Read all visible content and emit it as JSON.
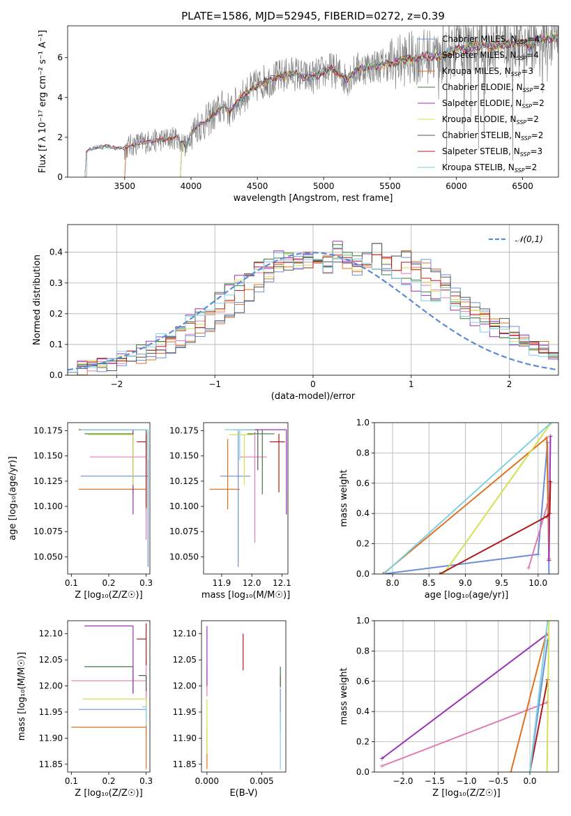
{
  "figure_title": "PLATE=1586, MJD=52945, FIBERID=0272, z=0.39",
  "series": [
    {
      "name": "Chabrier MILES, N$_{SSP}$=4",
      "label_main": "Chabrier MILES, N",
      "label_sub": "SSP",
      "label_tail": "=4",
      "color": "#6a8fd8"
    },
    {
      "name": "Salpeter MILES, N$_{SSP}$=4",
      "label_main": "Salpeter MILES, N",
      "label_sub": "SSP",
      "label_tail": "=4",
      "color": "#e07bb5"
    },
    {
      "name": "Kroupa MILES, N$_{SSP}$=3",
      "label_main": "Kroupa MILES, N",
      "label_sub": "SSP",
      "label_tail": "=3",
      "color": "#e07020"
    },
    {
      "name": "Chabrier ELODIE, N$_{SSP}$=2",
      "label_main": "Chabrier ELODIE, N",
      "label_sub": "SSP",
      "label_tail": "=2",
      "color": "#3a7d3a"
    },
    {
      "name": "Salpeter ELODIE, N$_{SSP}$=2",
      "label_main": "Salpeter ELODIE, N",
      "label_sub": "SSP",
      "label_tail": "=2",
      "color": "#9b30b8"
    },
    {
      "name": "Kroupa ELODIE, N$_{SSP}$=2",
      "label_main": "Kroupa ELODIE, N",
      "label_sub": "SSP",
      "label_tail": "=2",
      "color": "#d4e050"
    },
    {
      "name": "Chabrier STELIB, N$_{SSP}$=2",
      "label_main": "Chabrier STELIB, N",
      "label_sub": "SSP",
      "label_tail": "=2",
      "color": "#555555"
    },
    {
      "name": "Salpeter STELIB, N$_{SSP}$=3",
      "label_main": "Salpeter STELIB, N",
      "label_sub": "SSP",
      "label_tail": "=3",
      "color": "#b01818"
    },
    {
      "name": "Kroupa STELIB, N$_{SSP}$=2",
      "label_main": "Kroupa STELIB, N",
      "label_sub": "SSP",
      "label_tail": "=2",
      "color": "#7ed0e0"
    }
  ],
  "chart_data": [
    {
      "type": "line",
      "id": "spectrum",
      "xlabel": "wavelength [Angstrom, rest frame]",
      "ylabel": "Flux [f$_\\lambda$ 10$^{-17}$ erg cm$^{-2}$ s$^{-1}$ A$^{-1}$]",
      "ylabel_display": "Flux [f λ 10⁻¹⁷ erg cm⁻² s⁻¹ A⁻¹]",
      "xlim": [
        3070,
        6770
      ],
      "ylim": [
        0,
        7.6
      ],
      "xticks": [
        3500,
        4000,
        4500,
        5000,
        5500,
        6000,
        6500
      ],
      "yticks": [
        0,
        2,
        4,
        6
      ],
      "observed_color": "#808080",
      "model_anchor_x": [
        3200,
        3250,
        3300,
        3350,
        3400,
        3450,
        3500,
        3550,
        3600,
        3650,
        3700,
        3750,
        3800,
        3850,
        3900,
        3925,
        3935,
        3950,
        3968,
        3990,
        4050,
        4100,
        4150,
        4200,
        4250,
        4300,
        4350,
        4400,
        4450,
        4500,
        4550,
        4600,
        4650,
        4700,
        4750,
        4800,
        4850,
        4900,
        4950,
        5000,
        5050,
        5100,
        5150,
        5175,
        5200,
        5250,
        5300,
        5400,
        5500,
        5600,
        5700,
        5800,
        5890,
        5950,
        6000,
        6100,
        6200,
        6300,
        6400,
        6500,
        6560,
        6600,
        6700
      ],
      "model_anchor_y": [
        1.2,
        1.45,
        1.5,
        1.55,
        1.5,
        1.45,
        1.45,
        1.6,
        1.7,
        1.75,
        1.8,
        1.85,
        1.9,
        1.95,
        2.0,
        1.6,
        1.75,
        1.7,
        1.4,
        2.1,
        2.6,
        2.7,
        3.0,
        3.3,
        3.6,
        3.3,
        3.8,
        4.1,
        4.4,
        4.6,
        4.8,
        4.9,
        5.0,
        5.1,
        5.2,
        5.2,
        5.0,
        5.0,
        5.1,
        5.3,
        5.4,
        5.3,
        5.0,
        4.9,
        5.1,
        5.4,
        5.5,
        5.6,
        5.7,
        5.9,
        6.0,
        6.1,
        6.0,
        6.3,
        6.4,
        6.5,
        6.6,
        6.6,
        6.7,
        6.8,
        6.5,
        6.9,
        7.0
      ],
      "legend_position": "upper right"
    },
    {
      "type": "step",
      "id": "residual-histogram",
      "xlabel": "(data-model)/error",
      "ylabel": "Normed distribution",
      "xlim": [
        -2.5,
        2.5
      ],
      "ylim": [
        0,
        0.49
      ],
      "xticks": [
        -2,
        -1,
        0,
        1,
        2
      ],
      "yticks": [
        0.0,
        0.1,
        0.2,
        0.3,
        0.4
      ],
      "grid": true,
      "reference_curve": {
        "name": "𝒩(0,1)",
        "color": "#5b8bd6",
        "dash": "8,4"
      },
      "legend_position": "upper right",
      "bin_width": 0.1,
      "bin_start": -2.5,
      "histograms": [
        [
          0.02,
          0.02,
          0.03,
          0.03,
          0.03,
          0.04,
          0.04,
          0.05,
          0.06,
          0.07,
          0.09,
          0.1,
          0.12,
          0.14,
          0.15,
          0.17,
          0.19,
          0.22,
          0.26,
          0.29,
          0.32,
          0.34,
          0.36,
          0.38,
          0.39,
          0.38,
          0.35,
          0.38,
          0.36,
          0.34,
          0.37,
          0.43,
          0.36,
          0.38,
          0.39,
          0.37,
          0.36,
          0.33,
          0.31,
          0.27,
          0.24,
          0.22,
          0.2,
          0.18,
          0.17,
          0.15,
          0.12,
          0.1,
          0.09,
          0.07,
          0.06,
          0.05,
          0.05,
          0.04,
          0.03,
          0.03,
          0.02,
          0.02,
          0.02,
          0.02
        ],
        [
          0.03,
          0.03,
          0.03,
          0.04,
          0.04,
          0.05,
          0.06,
          0.07,
          0.08,
          0.1,
          0.11,
          0.13,
          0.15,
          0.17,
          0.19,
          0.22,
          0.25,
          0.29,
          0.32,
          0.35,
          0.34,
          0.36,
          0.38,
          0.37,
          0.36,
          0.35,
          0.38,
          0.4,
          0.38,
          0.36,
          0.35,
          0.38,
          0.37,
          0.36,
          0.35,
          0.34,
          0.31,
          0.29,
          0.27,
          0.25,
          0.22,
          0.2,
          0.18,
          0.16,
          0.14,
          0.12,
          0.11,
          0.09,
          0.08,
          0.07,
          0.06,
          0.05,
          0.04,
          0.04,
          0.03,
          0.03,
          0.02,
          0.02,
          0.02,
          0.02
        ],
        [
          0.03,
          0.03,
          0.04,
          0.04,
          0.05,
          0.06,
          0.07,
          0.08,
          0.1,
          0.12,
          0.13,
          0.15,
          0.18,
          0.2,
          0.22,
          0.25,
          0.28,
          0.31,
          0.33,
          0.35,
          0.36,
          0.4,
          0.38,
          0.36,
          0.39,
          0.37,
          0.36,
          0.42,
          0.39,
          0.37,
          0.38,
          0.36,
          0.34,
          0.32,
          0.31,
          0.29,
          0.26,
          0.25,
          0.28,
          0.22,
          0.2,
          0.18,
          0.16,
          0.14,
          0.13,
          0.11,
          0.1,
          0.08,
          0.07,
          0.06,
          0.05,
          0.05,
          0.04,
          0.03,
          0.03,
          0.03,
          0.02,
          0.02,
          0.02,
          0.02
        ]
      ]
    },
    {
      "type": "scatter",
      "id": "age-vs-Z",
      "xlabel": "Z [log$_{10}$(Z/Z$_\\odot$)]",
      "xlabel_display": "Z [log₁₀(Z/Z☉)]",
      "ylabel": "age  [log$_{10}$(age/yr)]",
      "ylabel_display": "age  [log₁₀(age/yr)]",
      "xlim": [
        0.09,
        0.31
      ],
      "ylim": [
        10.033,
        10.183
      ],
      "xticks": [
        0.1,
        0.2,
        0.3
      ],
      "yticks": [
        10.05,
        10.075,
        10.1,
        10.125,
        10.15,
        10.175
      ],
      "errorbars": [
        {
          "series": 0,
          "x": 0.305,
          "xerr_lo": 0.18,
          "y": 10.13,
          "yerr_lo": 0.09,
          "yerr_hi": 0.045
        },
        {
          "series": 1,
          "x": 0.3,
          "xerr_lo": 0.15,
          "y": 10.149,
          "yerr_lo": 0.082,
          "yerr_hi": 0.025
        },
        {
          "series": 2,
          "x": 0.3,
          "xerr_lo": 0.18,
          "y": 10.117,
          "yerr_lo": 0.02,
          "yerr_hi": 0.05
        },
        {
          "series": 3,
          "x": 0.265,
          "xerr_lo": 0.13,
          "y": 10.172,
          "yerr_lo": 0.06,
          "yerr_hi": 0.004
        },
        {
          "series": 4,
          "x": 0.265,
          "xerr_lo": 0.13,
          "y": 10.176,
          "yerr_lo": 0.084,
          "yerr_hi": 0.0
        },
        {
          "series": 5,
          "x": 0.265,
          "xerr_lo": 0.12,
          "y": 10.171,
          "yerr_lo": 0.05,
          "yerr_hi": 0.0
        },
        {
          "series": 6,
          "x": 0.3,
          "xerr_lo": 0.18,
          "y": 10.176,
          "yerr_lo": 0.02,
          "yerr_hi": 0.0
        },
        {
          "series": 7,
          "x": 0.3,
          "xerr_lo": 0.025,
          "y": 10.164,
          "yerr_lo": 0.065,
          "yerr_hi": 0.008
        },
        {
          "series": 8,
          "x": 0.305,
          "xerr_lo": 0.18,
          "y": 10.176,
          "yerr_lo": 0.03,
          "yerr_hi": 0.0
        }
      ]
    },
    {
      "type": "scatter",
      "id": "age-vs-mass",
      "xlabel": "mass [log$_{10}$(M/M$_\\odot$)]",
      "xlabel_display": "mass [log₁₀(M/M☉)]",
      "xlim": [
        11.84,
        12.12
      ],
      "ylim": [
        10.033,
        10.183
      ],
      "xticks": [
        11.9,
        12.0,
        12.1
      ],
      "yticks": [
        10.05,
        10.075,
        10.1,
        10.125,
        10.15,
        10.175
      ],
      "errorbars": [
        {
          "series": 0,
          "x": 11.955,
          "xerr_lo": 0.06,
          "xerr_hi": 0.04,
          "y": 10.13,
          "yerr_lo": 0.09,
          "yerr_hi": 0.045
        },
        {
          "series": 1,
          "x": 12.01,
          "xerr_lo": 0.05,
          "xerr_hi": 0.04,
          "y": 10.149,
          "yerr_lo": 0.085,
          "yerr_hi": 0.025
        },
        {
          "series": 2,
          "x": 11.92,
          "xerr_lo": 0.06,
          "xerr_hi": 0.04,
          "y": 10.117,
          "yerr_lo": 0.02,
          "yerr_hi": 0.05
        },
        {
          "series": 3,
          "x": 12.035,
          "xerr_lo": 0.05,
          "xerr_hi": 0.04,
          "y": 10.172,
          "yerr_lo": 0.06,
          "yerr_hi": 0.004
        },
        {
          "series": 4,
          "x": 12.115,
          "xerr_lo": 0.13,
          "xerr_hi": 0.0,
          "y": 10.176,
          "yerr_lo": 0.084,
          "yerr_hi": 0.0
        },
        {
          "series": 5,
          "x": 11.975,
          "xerr_lo": 0.05,
          "xerr_hi": 0.03,
          "y": 10.171,
          "yerr_lo": 0.05,
          "yerr_hi": 0.0
        },
        {
          "series": 6,
          "x": 12.02,
          "xerr_lo": 0.08,
          "xerr_hi": 0.0,
          "y": 10.176,
          "yerr_lo": 0.04,
          "yerr_hi": 0.0
        },
        {
          "series": 7,
          "x": 12.09,
          "xerr_lo": 0.03,
          "xerr_hi": 0.02,
          "y": 10.164,
          "yerr_lo": 0.05,
          "yerr_hi": 0.008
        },
        {
          "series": 8,
          "x": 11.96,
          "xerr_lo": 0.05,
          "xerr_hi": 0.05,
          "y": 10.176,
          "yerr_lo": 0.03,
          "yerr_hi": 0.0
        }
      ]
    },
    {
      "type": "line",
      "id": "massweight-vs-age",
      "xlabel": "age  [log$_{10}$(age/yr)]",
      "xlabel_display": "age  [log₁₀(age/yr)]",
      "ylabel": "mass weight",
      "xlim": [
        7.75,
        10.28
      ],
      "ylim": [
        0,
        1.0
      ],
      "xticks": [
        8.0,
        8.5,
        9.0,
        9.5,
        10.0
      ],
      "yticks": [
        0.0,
        0.2,
        0.4,
        0.6,
        0.8,
        1.0
      ],
      "grid": true,
      "lines": [
        {
          "series": 0,
          "x": [
            7.87,
            10.0,
            10.13,
            10.15
          ],
          "y": [
            0.0,
            0.13,
            0.87,
            0.0
          ]
        },
        {
          "series": 1,
          "x": [
            9.87,
            10.13,
            10.15
          ],
          "y": [
            0.04,
            0.46,
            0.5
          ]
        },
        {
          "series": 2,
          "x": [
            7.87,
            10.12,
            10.15
          ],
          "y": [
            0.0,
            0.9,
            0.1
          ]
        },
        {
          "series": 4,
          "x": [
            10.15,
            10.17
          ],
          "y": [
            0.09,
            0.91
          ]
        },
        {
          "series": 5,
          "x": [
            8.7,
            10.18
          ],
          "y": [
            0.0,
            1.0
          ]
        },
        {
          "series": 7,
          "x": [
            8.65,
            10.12,
            10.16,
            10.17
          ],
          "y": [
            0.0,
            0.38,
            0.4,
            0.61
          ]
        },
        {
          "series": 8,
          "x": [
            7.88,
            10.18
          ],
          "y": [
            0.0,
            1.0
          ]
        }
      ]
    },
    {
      "type": "scatter",
      "id": "mass-vs-Z",
      "xlabel": "Z [log$_{10}$(Z/Z$_\\odot$)]",
      "xlabel_display": "Z [log₁₀(Z/Z☉)]",
      "ylabel": "mass [log$_{10}$(M/M$_\\odot$)]",
      "ylabel_display": "mass [log₁₀(M/M☉)]",
      "xlim": [
        0.09,
        0.31
      ],
      "ylim": [
        11.835,
        12.125
      ],
      "xticks": [
        0.1,
        0.2,
        0.3
      ],
      "yticks": [
        11.85,
        11.9,
        11.95,
        12.0,
        12.05,
        12.1
      ],
      "errorbars": [
        {
          "series": 0,
          "x": 0.3,
          "xerr_lo": 0.18,
          "y": 11.955,
          "yerr_lo": 0.05,
          "yerr_hi": 0.04
        },
        {
          "series": 1,
          "x": 0.3,
          "xerr_lo": 0.2,
          "y": 12.01,
          "yerr_lo": 0.05,
          "yerr_hi": 0.04
        },
        {
          "series": 2,
          "x": 0.3,
          "xerr_lo": 0.2,
          "y": 11.921,
          "yerr_lo": 0.08,
          "yerr_hi": 0.0
        },
        {
          "series": 3,
          "x": 0.265,
          "xerr_lo": 0.13,
          "y": 12.037,
          "yerr_lo": 0.05,
          "yerr_hi": 0.0
        },
        {
          "series": 4,
          "x": 0.265,
          "xerr_lo": 0.13,
          "y": 12.115,
          "yerr_lo": 0.13,
          "yerr_hi": 0.0
        },
        {
          "series": 5,
          "x": 0.3,
          "xerr_lo": 0.17,
          "y": 11.975,
          "yerr_lo": 0.05,
          "yerr_hi": 0.0
        },
        {
          "series": 6,
          "x": 0.3,
          "xerr_lo": 0.02,
          "y": 12.02,
          "yerr_lo": 0.03,
          "yerr_hi": 0.0
        },
        {
          "series": 7,
          "x": 0.3,
          "xerr_lo": 0.025,
          "y": 12.09,
          "yerr_lo": 0.05,
          "yerr_hi": 0.03
        },
        {
          "series": 8,
          "x": 0.3,
          "xerr_lo": 0.01,
          "y": 11.96,
          "yerr_lo": 0.03,
          "yerr_hi": 0.0
        }
      ]
    },
    {
      "type": "scatter",
      "id": "mass-vs-ebv",
      "xlabel": "E(B-V)",
      "xlim": [
        -0.0005,
        0.0072
      ],
      "ylim": [
        11.835,
        12.125
      ],
      "xticks": [
        0.0,
        0.005
      ],
      "xtick_labels": [
        "0.000",
        "0.005"
      ],
      "yticks": [
        11.85,
        11.9,
        11.95,
        12.0,
        12.05,
        12.1
      ],
      "errorbars": [
        {
          "series": 0,
          "x": 0.0067,
          "y": 11.955,
          "yerr_lo": 0.04,
          "yerr_hi": 0.04
        },
        {
          "series": 1,
          "x": 0.0,
          "y": 12.01,
          "yerr_lo": 0.03,
          "yerr_hi": 0.03
        },
        {
          "series": 2,
          "x": 0.0,
          "y": 11.921,
          "yerr_lo": 0.08,
          "yerr_hi": 0.0
        },
        {
          "series": 3,
          "x": 0.0067,
          "y": 12.037,
          "yerr_lo": 0.04,
          "yerr_hi": 0.0
        },
        {
          "series": 4,
          "x": 0.0,
          "y": 12.05,
          "yerr_lo": 0.05,
          "yerr_hi": 0.065
        },
        {
          "series": 5,
          "x": 0.0,
          "y": 11.95,
          "yerr_lo": 0.08,
          "yerr_hi": 0.025
        },
        {
          "series": 6,
          "x": 0.0067,
          "y": 12.0,
          "yerr_lo": 0.0,
          "yerr_hi": 0.02
        },
        {
          "series": 7,
          "x": 0.0033,
          "y": 12.065,
          "yerr_lo": 0.035,
          "yerr_hi": 0.035
        },
        {
          "series": 8,
          "x": 0.0067,
          "y": 11.95,
          "yerr_lo": 0.11,
          "yerr_hi": 0.0
        }
      ]
    },
    {
      "type": "line",
      "id": "massweight-vs-Z",
      "xlabel": "Z [log$_{10}$(Z/Z$_\\odot$)]",
      "xlabel_display": "Z [log₁₀(Z/Z☉)]",
      "ylabel": "mass weight",
      "xlim": [
        -2.45,
        0.45
      ],
      "ylim": [
        0,
        1.0
      ],
      "xticks": [
        -2.0,
        -1.5,
        -1.0,
        -0.5,
        0.0
      ],
      "xtick_labels": [
        "−2.0",
        "−1.5",
        "−1.0",
        "−0.5",
        "0.0"
      ],
      "yticks": [
        0.0,
        0.2,
        0.4,
        0.6,
        0.8,
        1.0
      ],
      "grid": true,
      "lines": [
        {
          "series": 4,
          "x": [
            -2.33,
            0.27
          ],
          "y": [
            0.09,
            0.91
          ]
        },
        {
          "series": 1,
          "x": [
            -2.33,
            0.27
          ],
          "y": [
            0.04,
            0.46
          ]
        },
        {
          "series": 2,
          "x": [
            -0.3,
            0.25
          ],
          "y": [
            0.0,
            0.9
          ]
        },
        {
          "series": 7,
          "x": [
            0.0,
            0.28
          ],
          "y": [
            0.0,
            0.61
          ]
        },
        {
          "series": 0,
          "x": [
            0.0,
            0.28
          ],
          "y": [
            0.0,
            0.87
          ]
        },
        {
          "series": 8,
          "x": [
            0.0,
            0.28
          ],
          "y": [
            0.0,
            1.0
          ]
        },
        {
          "series": 5,
          "x": [
            0.27,
            0.3
          ],
          "y": [
            0.0,
            1.0
          ]
        }
      ]
    }
  ]
}
